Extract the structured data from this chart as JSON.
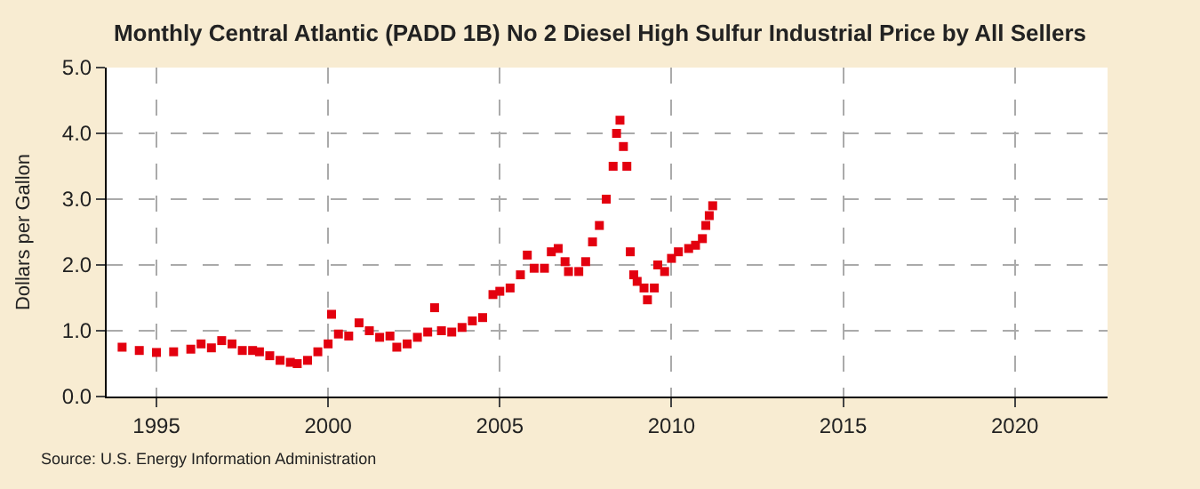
{
  "chart_data": {
    "type": "scatter",
    "title": "Monthly Central Atlantic (PADD 1B) No 2 Diesel High Sulfur Industrial Price by All Sellers",
    "ylabel": "Dollars per Gallon",
    "annotations": [
      "Source: U.S. Energy Information Administration"
    ],
    "marker": "square",
    "grid": true,
    "legend": false,
    "x": [
      1994.0,
      1994.5,
      1995.0,
      1995.5,
      1996.0,
      1996.3,
      1996.6,
      1996.9,
      1997.2,
      1997.5,
      1997.8,
      1998.0,
      1998.3,
      1998.6,
      1998.9,
      1999.1,
      1999.4,
      1999.7,
      2000.0,
      2000.1,
      2000.3,
      2000.6,
      2000.9,
      2001.2,
      2001.5,
      2001.8,
      2002.0,
      2002.3,
      2002.6,
      2002.9,
      2003.1,
      2003.3,
      2003.6,
      2003.9,
      2004.2,
      2004.5,
      2004.8,
      2005.0,
      2005.3,
      2005.6,
      2005.8,
      2006.0,
      2006.3,
      2006.5,
      2006.7,
      2006.9,
      2007.0,
      2007.3,
      2007.5,
      2007.7,
      2007.9,
      2008.1,
      2008.3,
      2008.4,
      2008.5,
      2008.6,
      2008.7,
      2008.8,
      2008.9,
      2009.0,
      2009.2,
      2009.3,
      2009.5,
      2009.6,
      2009.8,
      2010.0,
      2010.2,
      2010.5,
      2010.7,
      2010.9,
      2011.0,
      2011.1,
      2011.2
    ],
    "series": [
      {
        "color": "#e3000f",
        "values": [
          0.75,
          0.7,
          0.67,
          0.68,
          0.72,
          0.8,
          0.74,
          0.85,
          0.8,
          0.7,
          0.7,
          0.68,
          0.62,
          0.55,
          0.52,
          0.5,
          0.55,
          0.68,
          0.8,
          1.25,
          0.95,
          0.92,
          1.12,
          1.0,
          0.9,
          0.92,
          0.75,
          0.8,
          0.9,
          0.98,
          1.35,
          1.0,
          0.98,
          1.05,
          1.15,
          1.2,
          1.55,
          1.6,
          1.65,
          1.85,
          2.15,
          1.95,
          1.95,
          2.2,
          2.25,
          2.05,
          1.9,
          1.9,
          2.05,
          2.35,
          2.6,
          3.0,
          3.5,
          4.0,
          4.2,
          3.8,
          3.5,
          2.2,
          1.85,
          1.75,
          1.65,
          1.47,
          1.65,
          2.0,
          1.9,
          2.1,
          2.2,
          2.25,
          2.3,
          2.4,
          2.6,
          2.75,
          2.9
        ]
      }
    ],
    "xlim": [
      1993.55,
      2022.7
    ],
    "xticks": [
      1995,
      2000,
      2005,
      2010,
      2015,
      2020
    ],
    "ylim": [
      0,
      5
    ],
    "yticks": [
      {
        "value": 0,
        "label": "0.0"
      },
      {
        "value": 1,
        "label": "1.0"
      },
      {
        "value": 2,
        "label": "2.0"
      },
      {
        "value": 3,
        "label": "3.0"
      },
      {
        "value": 4,
        "label": "4.0"
      },
      {
        "value": 5,
        "label": "5.0"
      }
    ]
  }
}
